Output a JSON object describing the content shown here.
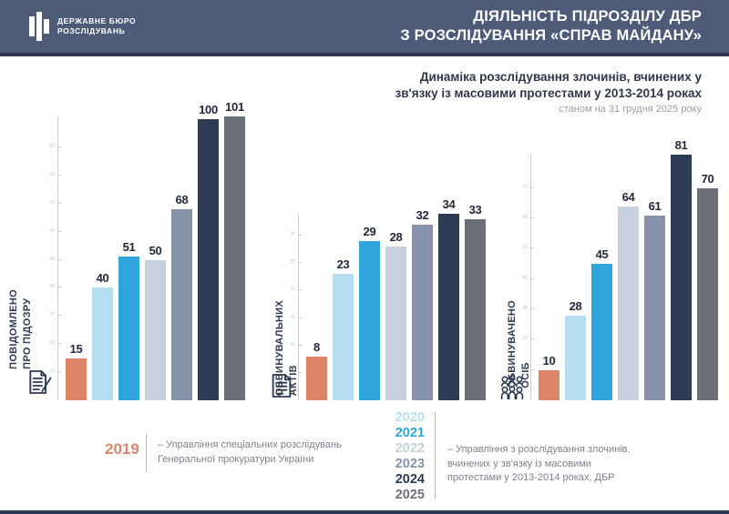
{
  "header": {
    "logo_line1": "ДЕРЖАВНЕ БЮРО",
    "logo_line2": "РОЗСЛІДУВАНЬ",
    "title_line1": "ДІЯЛЬНІСТЬ ПІДРОЗДІЛУ ДБР",
    "title_line2": "З РОЗСЛІДУВАННЯ «СПРАВ МАЙДАНУ»"
  },
  "subtitle": {
    "line1": "Динаміка розслідування злочинів, вчинених у",
    "line2": "зв'язку із масовими протестами у 2013-2014 роках",
    "date_note": "станом на 31 грудня 2025 року"
  },
  "years": [
    "2019",
    "2020",
    "2021",
    "2022",
    "2023",
    "2024",
    "2025"
  ],
  "colors": {
    "header_bg": "#4d5a78",
    "header_border": "#2d3950",
    "year_colors": [
      "#DD8468",
      "#B5DFF1",
      "#2EA3DC",
      "#C7D0DF",
      "#8592A7",
      "#2E3B55",
      "#6C6F78"
    ],
    "axis_line": "#ccd0d8",
    "value_label": "#23283a",
    "axis_title": "#2d3a52",
    "legend_text": "#7d828c"
  },
  "chart_data": [
    {
      "type": "bar",
      "title": "ПОВІДОМЛЕНО ПРО ПІДОЗРУ",
      "title_lines": [
        "ПОВІДОМЛЕНО",
        "ПРО ПІДОЗРУ"
      ],
      "icon": "document-pen-icon",
      "categories": [
        "2019",
        "2020",
        "2021",
        "2022",
        "2023",
        "2024",
        "2025"
      ],
      "values": [
        15,
        40,
        51,
        50,
        68,
        100,
        101
      ],
      "ylim": [
        0,
        101
      ],
      "yticks": [
        10,
        20,
        30,
        40,
        50,
        60,
        70,
        80,
        90
      ],
      "grid": false,
      "legend_position": "none"
    },
    {
      "type": "bar",
      "title": "ОБВИНУВАЛЬНИХ АКТІВ",
      "title_lines": [
        "ОБВИНУВАЛЬНИХ",
        "АКТІВ"
      ],
      "icon": "document-icon",
      "categories": [
        "2019",
        "2020",
        "2021",
        "2022",
        "2023",
        "2024",
        "2025"
      ],
      "values": [
        8,
        23,
        29,
        28,
        32,
        34,
        33
      ],
      "ylim": [
        0,
        34
      ],
      "yticks": [
        5,
        10,
        15,
        20,
        25,
        30
      ],
      "grid": false,
      "legend_position": "none"
    },
    {
      "type": "bar",
      "title": "ОБВИНУВАЧЕНО ОСІБ",
      "title_lines": [
        "ОБВИНУВАЧЕНО",
        "ОСІБ"
      ],
      "icon": "crowd-icon",
      "categories": [
        "2019",
        "2020",
        "2021",
        "2022",
        "2023",
        "2024",
        "2025"
      ],
      "values": [
        10,
        28,
        45,
        64,
        61,
        81,
        70
      ],
      "ylim": [
        0,
        81
      ],
      "yticks": [
        10,
        20,
        30,
        40,
        50,
        60,
        70
      ],
      "grid": false,
      "legend_position": "none"
    }
  ],
  "legend": {
    "left": {
      "year": "2019",
      "lines": [
        "– Управління спеціальних розслідувань",
        "Генеральної прокуратури України"
      ]
    },
    "right": {
      "years": [
        "2020",
        "2021",
        "2022",
        "2023",
        "2024",
        "2025"
      ],
      "lines": [
        "– Управління з розслідування злочинів,",
        "вчинених у зв'язку із  масовими",
        "протестами у 2013-2014 роках, ДБР"
      ]
    }
  }
}
